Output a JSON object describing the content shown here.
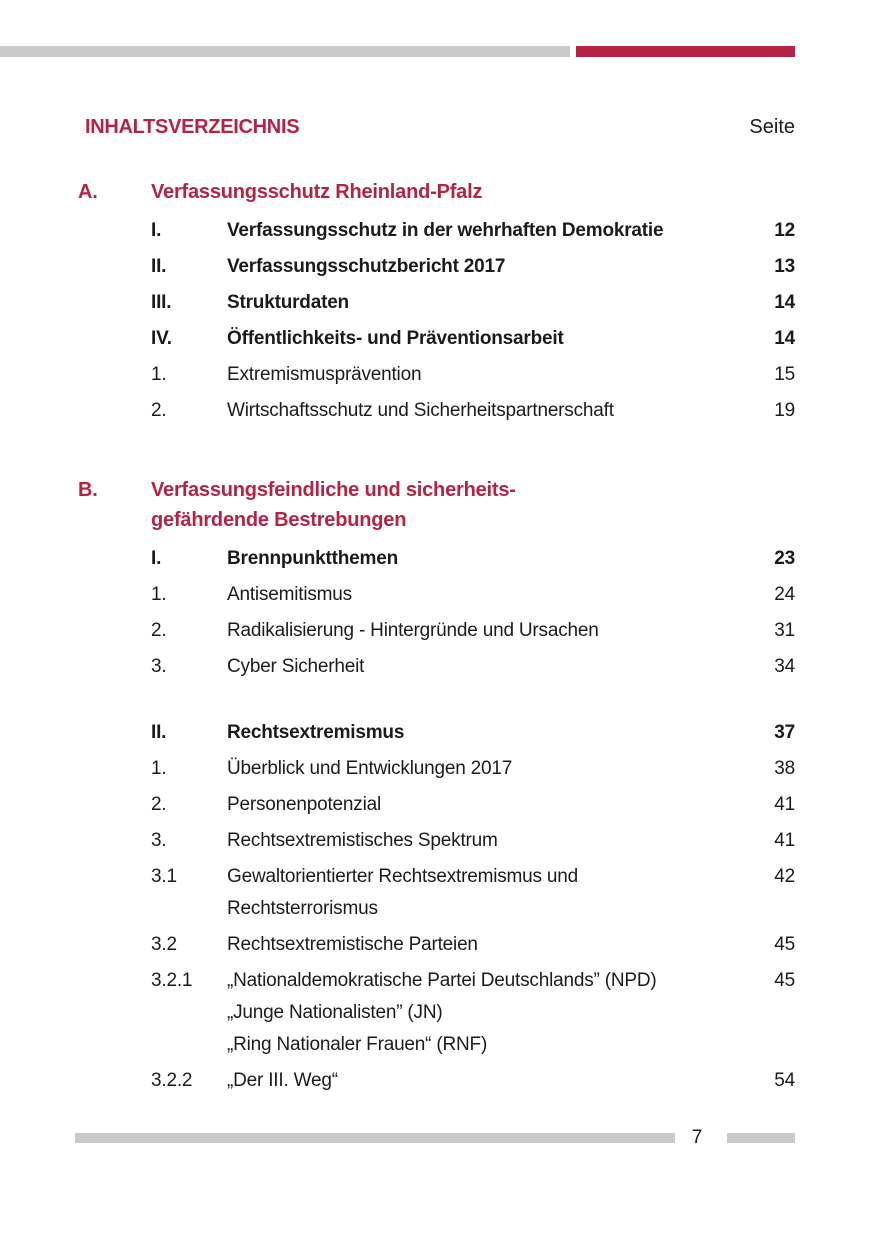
{
  "colors": {
    "accent": "#b42345",
    "text": "#1b1b1b",
    "rule_gray": "#c9c9c9"
  },
  "header": {
    "title": "INHALTSVERZEICHNIS",
    "page_label": "Seite"
  },
  "footer": {
    "page_number": "7"
  },
  "toc": {
    "sections": [
      {
        "letter": "A.",
        "title_lines": [
          "Verfassungsschutz Rheinland-Pfalz"
        ],
        "entries": [
          {
            "num": "I.",
            "lines": [
              "Verfassungsschutz in der wehrhaften Demokratie"
            ],
            "page": "12",
            "bold": true
          },
          {
            "num": "II.",
            "lines": [
              "Verfassungsschutzbericht 2017"
            ],
            "page": "13",
            "bold": true
          },
          {
            "num": "III.",
            "lines": [
              "Strukturdaten"
            ],
            "page": "14",
            "bold": true
          },
          {
            "num": "IV.",
            "lines": [
              "Öffentlichkeits- und Präventionsarbeit"
            ],
            "page": "14",
            "bold": true
          },
          {
            "num": "1.",
            "lines": [
              "Extremismusprävention"
            ],
            "page": "15",
            "bold": false
          },
          {
            "num": "2.",
            "lines": [
              "Wirtschaftsschutz und Sicherheitspartnerschaft"
            ],
            "page": "19",
            "bold": false
          }
        ]
      },
      {
        "letter": "B.",
        "title_lines": [
          "Verfassungsfeindliche und sicherheits-",
          "gefährdende Bestrebungen"
        ],
        "entries": [
          {
            "num": "I.",
            "lines": [
              "Brennpunktthemen"
            ],
            "page": "23",
            "bold": true
          },
          {
            "num": "1.",
            "lines": [
              "Antisemitismus"
            ],
            "page": "24",
            "bold": false
          },
          {
            "num": "2.",
            "lines": [
              "Radikalisierung - Hintergründe und Ursachen"
            ],
            "page": "31",
            "bold": false
          },
          {
            "num": "3.",
            "lines": [
              "Cyber Sicherheit"
            ],
            "page": "34",
            "bold": false
          },
          {
            "num": "II.",
            "lines": [
              "Rechtsextremismus"
            ],
            "page": "37",
            "bold": true,
            "gap_before": true
          },
          {
            "num": "1.",
            "lines": [
              "Überblick und Entwicklungen 2017"
            ],
            "page": "38",
            "bold": false
          },
          {
            "num": "2.",
            "lines": [
              "Personenpotenzial"
            ],
            "page": "41",
            "bold": false
          },
          {
            "num": "3.",
            "lines": [
              "Rechtsextremistisches Spektrum"
            ],
            "page": "41",
            "bold": false
          },
          {
            "num": "3.1",
            "lines": [
              "Gewaltorientierter Rechtsextremismus und",
              "Rechtsterrorismus"
            ],
            "page": "42",
            "bold": false
          },
          {
            "num": "3.2",
            "lines": [
              "Rechtsextremistische Parteien"
            ],
            "page": "45",
            "bold": false
          },
          {
            "num": "3.2.1",
            "lines": [
              "„Nationaldemokratische Partei Deutschlands” (NPD)",
              "„Junge Nationalisten” (JN)",
              "„Ring Nationaler Frauen“ (RNF)"
            ],
            "page": "45",
            "bold": false
          },
          {
            "num": "3.2.2",
            "lines": [
              "„Der III. Weg“"
            ],
            "page": "54",
            "bold": false
          }
        ]
      }
    ]
  }
}
